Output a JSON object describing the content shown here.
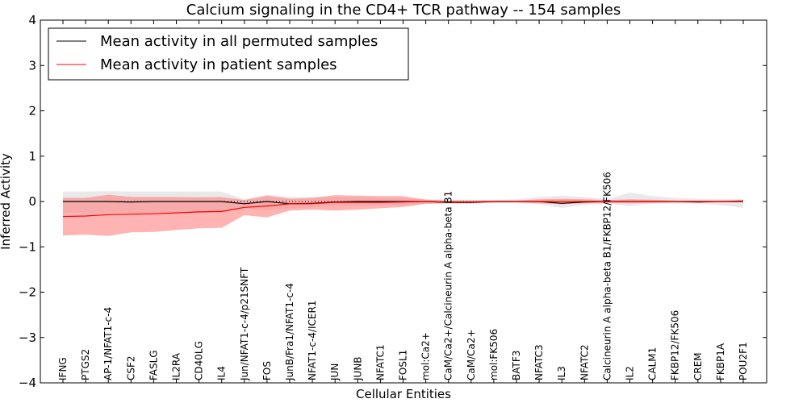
{
  "chart_data": {
    "type": "line",
    "title": "Calcium signaling in the CD4+ TCR pathway -- 154 samples",
    "xlabel": "Cellular Entities",
    "ylabel": "Inferred Activity",
    "ylim": [
      -4,
      4
    ],
    "yticks": [
      -4,
      -3,
      -2,
      -1,
      0,
      1,
      2,
      3,
      4
    ],
    "ytick_labels": [
      "−4",
      "−3",
      "−2",
      "−1",
      "0",
      "1",
      "2",
      "3",
      "4"
    ],
    "grid": false,
    "legend_position": "top-left",
    "colors": {
      "permuted": "#000000",
      "patient": "#ff0000",
      "permuted_band": "#bfbfbf",
      "patient_band": "#ff8080"
    },
    "categories": [
      "IFNG",
      "PTGS2",
      "AP-1/NFAT1-c-4",
      "CSF2",
      "FASLG",
      "IL2RA",
      "CD40LG",
      "IL4",
      "Jun/NFAT1-c-4/p21SNFT",
      "FOS",
      "JunB/Fra1/NFAT1-c-4",
      "NFAT1-c-4/ICER1",
      "JUN",
      "JUNB",
      "NFATC1",
      "FOSL1",
      "mol:Ca2+",
      "CaM/Ca2+/Calcineurin A alpha-beta B1",
      "CaM/Ca2+",
      "mol:FK506",
      "BATF3",
      "NFATC3",
      "IL3",
      "NFATC2",
      "Calcineurin A alpha-beta B1/FKBP12/FK506",
      "IL2",
      "CALM1",
      "FKBP12/FK506",
      "CREM",
      "FKBP1A",
      "POU2F1"
    ],
    "series": [
      {
        "name": "Mean activity in all permuted samples",
        "values": [
          0.0,
          0.0,
          0.0,
          -0.01,
          0.0,
          0.0,
          0.0,
          0.0,
          -0.05,
          0.0,
          -0.05,
          -0.04,
          -0.01,
          0.0,
          0.0,
          0.0,
          0.0,
          -0.02,
          -0.02,
          0.0,
          0.0,
          0.0,
          -0.04,
          -0.01,
          0.0,
          0.0,
          0.0,
          0.0,
          -0.01,
          0.0,
          0.01
        ],
        "lower": [
          -0.25,
          -0.25,
          -0.26,
          -0.26,
          -0.25,
          -0.25,
          -0.25,
          -0.24,
          -0.15,
          -0.2,
          -0.15,
          -0.13,
          -0.1,
          -0.1,
          -0.08,
          -0.08,
          -0.05,
          -0.05,
          -0.05,
          -0.03,
          -0.03,
          -0.06,
          -0.14,
          -0.08,
          -0.05,
          -0.1,
          -0.05,
          -0.05,
          -0.05,
          -0.08,
          -0.14
        ],
        "upper": [
          0.22,
          0.22,
          0.23,
          0.22,
          0.22,
          0.22,
          0.22,
          0.22,
          0.05,
          0.15,
          0.1,
          0.1,
          0.1,
          0.1,
          0.08,
          0.07,
          0.05,
          0.04,
          0.04,
          0.03,
          0.05,
          0.1,
          0.13,
          0.1,
          0.05,
          0.2,
          0.12,
          0.08,
          0.06,
          0.05,
          0.06
        ]
      },
      {
        "name": "Mean activity in patient samples",
        "values": [
          -0.33,
          -0.32,
          -0.29,
          -0.28,
          -0.27,
          -0.25,
          -0.23,
          -0.22,
          -0.13,
          -0.1,
          -0.05,
          -0.05,
          -0.02,
          -0.02,
          -0.02,
          -0.01,
          0.0,
          -0.01,
          -0.01,
          0.0,
          0.0,
          0.0,
          0.0,
          0.0,
          0.0,
          0.0,
          0.0,
          0.0,
          0.0,
          0.0,
          0.0
        ],
        "lower": [
          -0.75,
          -0.73,
          -0.76,
          -0.68,
          -0.67,
          -0.63,
          -0.59,
          -0.58,
          -0.3,
          -0.35,
          -0.2,
          -0.18,
          -0.2,
          -0.18,
          -0.15,
          -0.12,
          -0.05,
          -0.04,
          -0.04,
          -0.02,
          -0.02,
          -0.04,
          -0.06,
          -0.04,
          -0.03,
          -0.04,
          -0.03,
          -0.02,
          -0.02,
          -0.02,
          -0.02
        ],
        "upper": [
          0.08,
          0.08,
          0.15,
          0.1,
          0.1,
          0.1,
          0.09,
          0.1,
          0.03,
          0.13,
          0.06,
          0.08,
          0.14,
          0.13,
          0.12,
          0.12,
          0.04,
          0.02,
          0.02,
          0.02,
          0.02,
          0.05,
          0.06,
          0.05,
          0.03,
          0.05,
          0.04,
          0.02,
          0.02,
          0.02,
          0.02
        ]
      }
    ]
  }
}
